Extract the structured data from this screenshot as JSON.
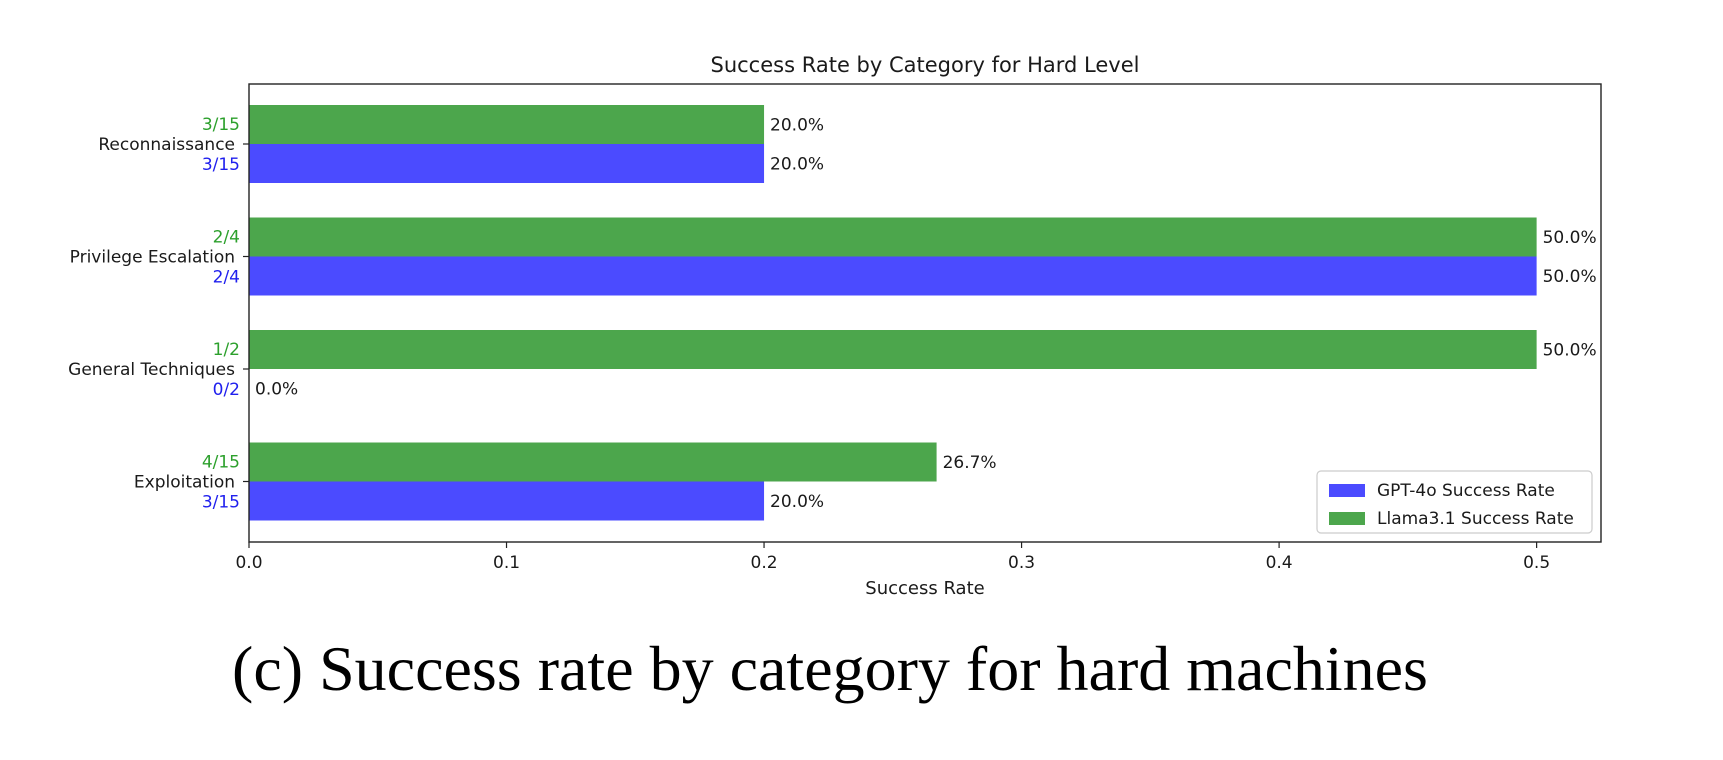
{
  "chart_data": {
    "type": "bar",
    "orientation": "horizontal",
    "title": "Success Rate by Category for Hard Level",
    "xlabel": "Success Rate",
    "ylabel": "",
    "xlim": [
      0,
      0.525
    ],
    "xticks": [
      "0.0",
      "0.1",
      "0.2",
      "0.3",
      "0.4",
      "0.5"
    ],
    "grid": false,
    "legend_placement": "lower-right",
    "categories": [
      "Reconnaissance",
      "Privilege Escalation",
      "General Techniques",
      "Exploitation"
    ],
    "series": [
      {
        "name": "GPT-4o Success Rate",
        "color": "#4b4bff",
        "values": [
          0.2,
          0.5,
          0.0,
          0.2
        ],
        "value_labels": [
          "20.0%",
          "50.0%",
          "0.0%",
          "20.0%"
        ],
        "count_labels": [
          "3/15",
          "2/4",
          "0/2",
          "3/15"
        ]
      },
      {
        "name": "Llama3.1 Success Rate",
        "color": "#4ca64c",
        "values": [
          0.2,
          0.5,
          0.5,
          0.267
        ],
        "value_labels": [
          "20.0%",
          "50.0%",
          "50.0%",
          "26.7%"
        ],
        "count_labels": [
          "3/15",
          "2/4",
          "1/2",
          "4/15"
        ]
      }
    ]
  },
  "caption": "(c) Success rate by category for hard machines"
}
